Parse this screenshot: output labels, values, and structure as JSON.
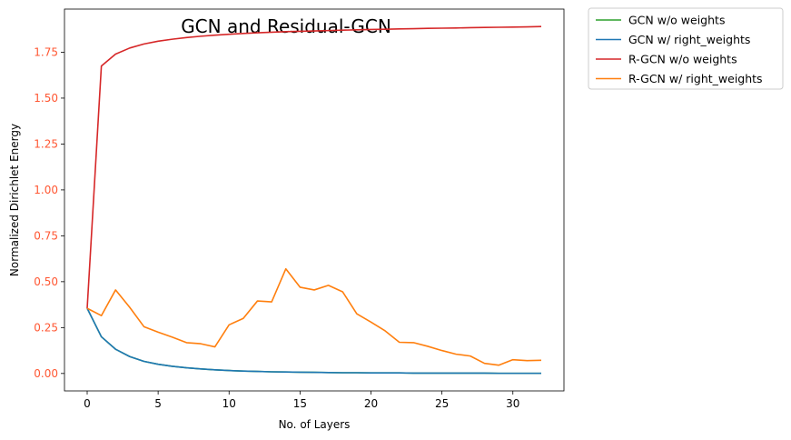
{
  "chart_data": {
    "type": "line",
    "title": "GCN and Residual-GCN",
    "xlabel": "No. of Layers",
    "ylabel": "Normalized Dirichlet Energy",
    "xlim": [
      -1.6,
      33.6
    ],
    "ylim": [
      -0.095,
      1.985
    ],
    "x_ticks": [
      0,
      5,
      10,
      15,
      20,
      25,
      30
    ],
    "y_ticks": [
      0.0,
      0.25,
      0.5,
      0.75,
      1.0,
      1.25,
      1.5,
      1.75
    ],
    "y_tick_labels": [
      "0.00",
      "0.25",
      "0.50",
      "0.75",
      "1.00",
      "1.25",
      "1.50",
      "1.75"
    ],
    "y_tick_label_color": "#ff5733",
    "x_tick_label_color": "#000000",
    "grid": false,
    "legend_position": "outside top-right",
    "x": [
      0,
      1,
      2,
      3,
      4,
      5,
      6,
      7,
      8,
      9,
      10,
      11,
      12,
      13,
      14,
      15,
      16,
      17,
      18,
      19,
      20,
      21,
      22,
      23,
      24,
      25,
      26,
      27,
      28,
      29,
      30,
      31,
      32
    ],
    "series": [
      {
        "name": "GCN w/o weights",
        "color": "#2ca02c",
        "values": [
          0.355,
          0.2,
          0.132,
          0.092,
          0.066,
          0.05,
          0.039,
          0.031,
          0.025,
          0.02,
          0.016,
          0.013,
          0.011,
          0.009,
          0.008,
          0.007,
          0.006,
          0.005,
          0.004,
          0.004,
          0.003,
          0.003,
          0.003,
          0.002,
          0.002,
          0.002,
          0.002,
          0.002,
          0.002,
          0.001,
          0.001,
          0.001,
          0.001
        ]
      },
      {
        "name": "GCN w/ right_weights",
        "color": "#1f77b4",
        "values": [
          0.355,
          0.2,
          0.132,
          0.092,
          0.066,
          0.05,
          0.039,
          0.031,
          0.025,
          0.02,
          0.016,
          0.013,
          0.011,
          0.009,
          0.008,
          0.007,
          0.006,
          0.005,
          0.004,
          0.004,
          0.003,
          0.003,
          0.003,
          0.002,
          0.002,
          0.002,
          0.002,
          0.002,
          0.002,
          0.001,
          0.001,
          0.001,
          0.001
        ]
      },
      {
        "name": "R-GCN w/o weights",
        "color": "#d62728",
        "values": [
          0.355,
          1.675,
          1.74,
          1.773,
          1.795,
          1.81,
          1.821,
          1.83,
          1.837,
          1.843,
          1.848,
          1.852,
          1.856,
          1.859,
          1.862,
          1.864,
          1.866,
          1.868,
          1.87,
          1.872,
          1.874,
          1.875,
          1.877,
          1.878,
          1.88,
          1.881,
          1.882,
          1.884,
          1.885,
          1.886,
          1.887,
          1.888,
          1.89
        ]
      },
      {
        "name": "R-GCN w/ right_weights",
        "color": "#ff7f0e",
        "values": [
          0.355,
          0.315,
          0.455,
          0.36,
          0.255,
          0.225,
          0.198,
          0.168,
          0.162,
          0.145,
          0.265,
          0.3,
          0.395,
          0.39,
          0.57,
          0.47,
          0.455,
          0.48,
          0.445,
          0.325,
          0.28,
          0.232,
          0.17,
          0.168,
          0.148,
          0.125,
          0.105,
          0.095,
          0.055,
          0.045,
          0.075,
          0.07,
          0.072
        ]
      }
    ]
  }
}
